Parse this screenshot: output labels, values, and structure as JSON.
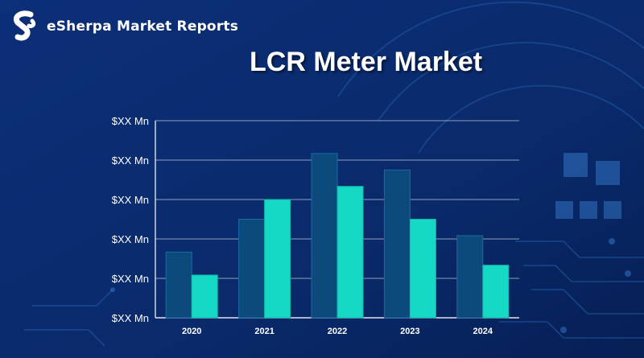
{
  "brand": {
    "name": "eSherpa Market Reports",
    "logo_icon": "esherpa-s-logo-icon"
  },
  "page_title": "LCR Meter Market",
  "colors": {
    "background": "#0a2a6b",
    "bar_dark": "#0d4a7c",
    "bar_light": "#16d9c5",
    "grid": "#ffffff",
    "text": "#ffffff"
  },
  "chart_data": {
    "type": "bar",
    "title": "LCR Meter Market",
    "xlabel": "",
    "ylabel": "",
    "categories": [
      "2020",
      "2021",
      "2022",
      "2023",
      "2024"
    ],
    "y_tick_labels": [
      "$XX Mn",
      "$XX Mn",
      "$XX Mn",
      "$XX Mn",
      "$XX Mn",
      "$XX Mn"
    ],
    "series": [
      {
        "values": [
          2.0,
          3.0,
          5.0,
          4.5,
          2.5
        ]
      },
      {
        "values": [
          1.3,
          3.6,
          4.0,
          3.0,
          1.6
        ]
      }
    ],
    "ylim": [
      0,
      6
    ],
    "grid": true,
    "legend": "none"
  }
}
